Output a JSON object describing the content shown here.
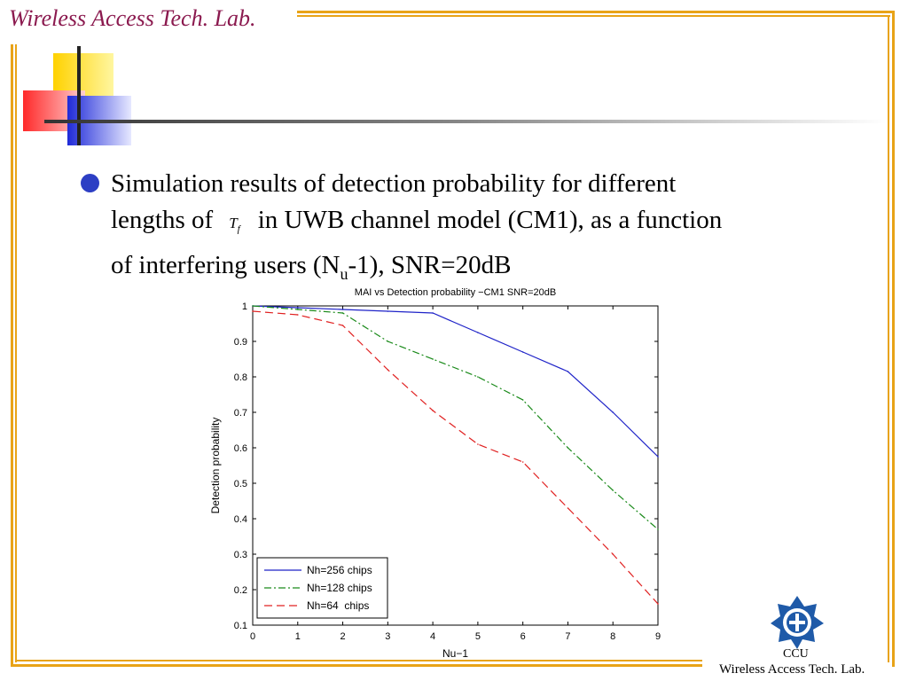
{
  "header": {
    "lab_title": "Wireless Access Tech. Lab."
  },
  "bullet": {
    "line1": "Simulation results of detection probability for different",
    "line2_pre": "lengths of",
    "math_symbol": "T",
    "math_sub": "f",
    "line2_post": "in UWB channel model (CM1), as a function",
    "line3_pre": "of interfering users (N",
    "line3_sub": "u",
    "line3_post": "-1), SNR=20dB"
  },
  "footer": {
    "ccu": "CCU",
    "lab": "Wireless Access Tech. Lab."
  },
  "colors": {
    "frame": "#e8a317",
    "title": "#8b1a4f",
    "bullet": "#2d3fc4"
  },
  "chart_data": {
    "type": "line",
    "title": "MAI vs Detection probability −CM1 SNR=20dB",
    "xlabel": "Nu−1",
    "ylabel": "Detection probability",
    "xlim": [
      0,
      9
    ],
    "ylim": [
      0.1,
      1
    ],
    "xticks": [
      "0",
      "1",
      "2",
      "3",
      "4",
      "5",
      "6",
      "7",
      "8",
      "9"
    ],
    "yticks": [
      "0.1",
      "0.2",
      "0.3",
      "0.4",
      "0.5",
      "0.6",
      "0.7",
      "0.8",
      "0.9",
      "1"
    ],
    "legend_position": "bottom-left",
    "x": [
      0,
      1,
      2,
      3,
      4,
      5,
      6,
      7,
      8,
      9
    ],
    "series": [
      {
        "name": "Nh=256 chips",
        "color": "#1f23c8",
        "dash": "solid",
        "values": [
          1.0,
          0.995,
          0.99,
          0.985,
          0.98,
          0.925,
          0.87,
          0.815,
          0.7,
          0.575
        ]
      },
      {
        "name": "Nh=128 chips",
        "color": "#1a8a1a",
        "dash": "dashdot",
        "values": [
          1.0,
          0.99,
          0.98,
          0.9,
          0.85,
          0.8,
          0.735,
          0.6,
          0.48,
          0.37
        ]
      },
      {
        "name": "Nh=64  chips",
        "color": "#e02020",
        "dash": "dashed",
        "values": [
          0.985,
          0.975,
          0.945,
          0.82,
          0.705,
          0.61,
          0.56,
          0.43,
          0.3,
          0.16
        ]
      }
    ]
  }
}
